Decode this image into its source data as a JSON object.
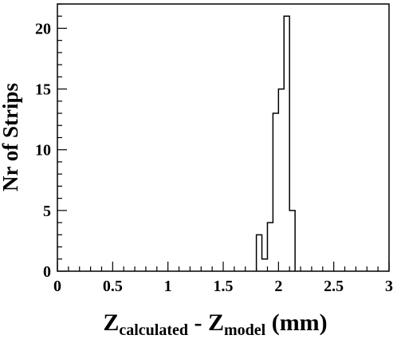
{
  "chart_data": {
    "type": "bar",
    "style": "histogram-step",
    "xlabel": {
      "main": "Z",
      "sub1": "calculated",
      "mid": " - Z",
      "sub2": "model",
      "unit": " (mm)"
    },
    "ylabel": "Nr of Strips",
    "xlim": [
      0,
      3
    ],
    "ylim": [
      0,
      22
    ],
    "x_ticks": [
      "0",
      "0.5",
      "1",
      "1.5",
      "2",
      "2.5",
      "3"
    ],
    "y_ticks": [
      "0",
      "5",
      "10",
      "15",
      "20"
    ],
    "bin_width": 0.05,
    "bins": [
      {
        "x0": 1.8,
        "x1": 1.85,
        "count": 3
      },
      {
        "x0": 1.85,
        "x1": 1.9,
        "count": 1
      },
      {
        "x0": 1.9,
        "x1": 1.95,
        "count": 4
      },
      {
        "x0": 1.95,
        "x1": 2.0,
        "count": 13
      },
      {
        "x0": 2.0,
        "x1": 2.05,
        "count": 15
      },
      {
        "x0": 2.05,
        "x1": 2.1,
        "count": 21
      },
      {
        "x0": 2.1,
        "x1": 2.15,
        "count": 5
      }
    ],
    "grid": false,
    "legend": "none"
  }
}
